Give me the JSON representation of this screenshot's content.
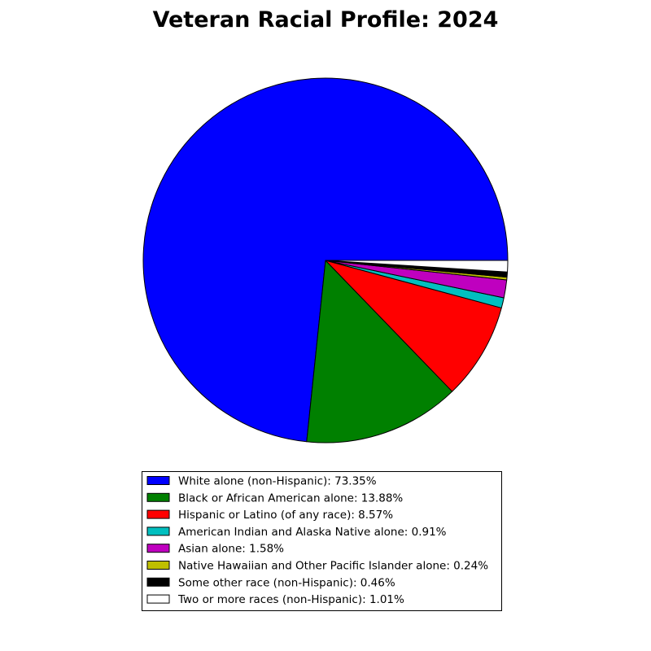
{
  "chart_data": {
    "type": "pie",
    "title": "Veteran Racial Profile: 2024",
    "start_angle_deg": 0,
    "direction": "counterclockwise",
    "legend_position": "bottom",
    "slices": [
      {
        "label": "White alone (non-Hispanic): 73.35%",
        "value": 73.35,
        "color": "#0000ff"
      },
      {
        "label": "Black or African American alone: 13.88%",
        "value": 13.88,
        "color": "#008000"
      },
      {
        "label": "Hispanic or Latino (of any race): 8.57%",
        "value": 8.57,
        "color": "#ff0000"
      },
      {
        "label": "American Indian and Alaska Native alone: 0.91%",
        "value": 0.91,
        "color": "#00bfbf"
      },
      {
        "label": "Asian alone: 1.58%",
        "value": 1.58,
        "color": "#bf00bf"
      },
      {
        "label": "Native Hawaiian and Other Pacific Islander alone: 0.24%",
        "value": 0.24,
        "color": "#bfbf00"
      },
      {
        "label": "Some other race (non-Hispanic): 0.46%",
        "value": 0.46,
        "color": "#000000"
      },
      {
        "label": "Two or more races (non-Hispanic): 1.01%",
        "value": 1.01,
        "color": "#ffffff"
      }
    ]
  }
}
